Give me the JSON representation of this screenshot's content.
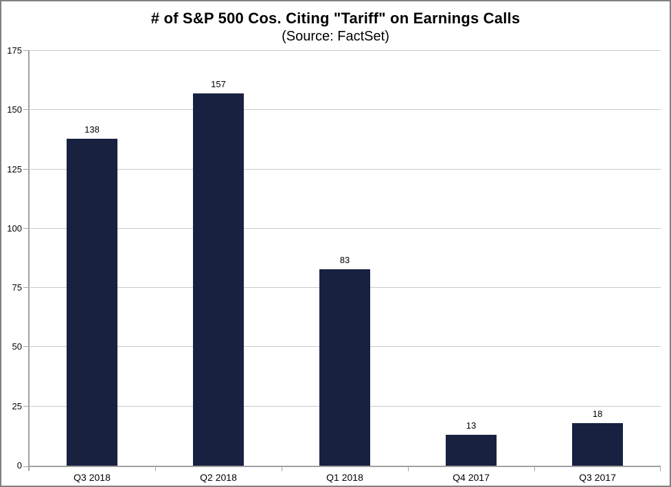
{
  "chart_data": {
    "type": "bar",
    "title": "# of S&P 500 Cos. Citing \"Tariff\" on Earnings Calls",
    "subtitle": "(Source: FactSet)",
    "categories": [
      "Q3 2018",
      "Q2 2018",
      "Q1 2018",
      "Q4 2017",
      "Q3 2017"
    ],
    "values": [
      138,
      157,
      83,
      13,
      18
    ],
    "data_labels": [
      "138",
      "157",
      "83",
      "13",
      "18"
    ],
    "ytick_labels": [
      "0",
      "25",
      "50",
      "75",
      "100",
      "125",
      "150",
      "175"
    ],
    "ylim": [
      0,
      175
    ],
    "ytick_step": 25,
    "xlabel": "",
    "ylabel": "",
    "grid": true,
    "legend": "none",
    "colors": {
      "bar": "#182140",
      "gridline": "#c9c9c9",
      "axis": "#a0a0a0",
      "frame_border": "#7f7f7f",
      "background": "#ffffff",
      "text": "#000000"
    }
  }
}
